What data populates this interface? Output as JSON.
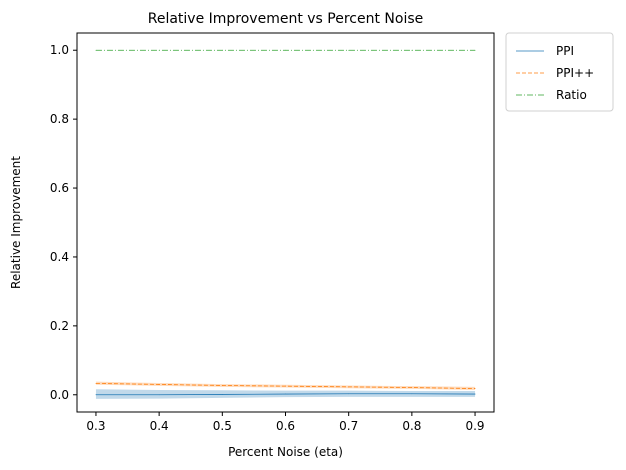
{
  "chart_data": {
    "type": "line",
    "title": "Relative Improvement vs Percent Noise",
    "xlabel": "Percent Noise (eta)",
    "ylabel": "Relative Improvement",
    "xlim": [
      0.27,
      0.93
    ],
    "ylim": [
      -0.05,
      1.05
    ],
    "xticks": [
      0.3,
      0.4,
      0.5,
      0.6,
      0.7,
      0.8,
      0.9
    ],
    "xtick_labels": [
      "0.3",
      "0.4",
      "0.5",
      "0.6",
      "0.7",
      "0.8",
      "0.9"
    ],
    "yticks": [
      0.0,
      0.2,
      0.4,
      0.6,
      0.8,
      1.0
    ],
    "ytick_labels": [
      "0.0",
      "0.2",
      "0.4",
      "0.6",
      "0.8",
      "1.0"
    ],
    "grid": false,
    "legend_position": "outside-top-right",
    "x": [
      0.3,
      0.4,
      0.5,
      0.6,
      0.7,
      0.8,
      0.9
    ],
    "series": [
      {
        "name": "PPI",
        "color": "#1f77b4",
        "line_style": "solid",
        "values": [
          0.0,
          0.0,
          0.001,
          0.002,
          0.003,
          0.003,
          0.002
        ],
        "band_lower": [
          -0.012,
          -0.011,
          -0.009,
          -0.007,
          -0.006,
          -0.006,
          -0.006
        ],
        "band_upper": [
          0.016,
          0.014,
          0.013,
          0.012,
          0.012,
          0.011,
          0.011
        ]
      },
      {
        "name": "PPI++",
        "color": "#ff7f0e",
        "line_style": "dashed",
        "values": [
          0.033,
          0.03,
          0.027,
          0.025,
          0.023,
          0.021,
          0.018
        ],
        "band_lower": [
          0.029,
          0.026,
          0.023,
          0.021,
          0.019,
          0.017,
          0.014
        ],
        "band_upper": [
          0.038,
          0.034,
          0.031,
          0.029,
          0.027,
          0.025,
          0.023
        ]
      },
      {
        "name": "Ratio",
        "color": "#2ca02c",
        "line_style": "dashdot",
        "values": [
          1.0,
          1.0,
          1.0,
          1.0,
          1.0,
          1.0,
          1.0
        ]
      }
    ]
  }
}
